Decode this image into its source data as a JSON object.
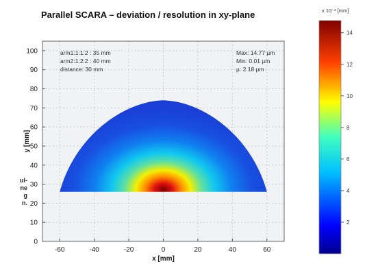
{
  "chart_data": {
    "type": "heatmap",
    "title": "Parallel SCARA – deviation / resolution in xy-plane",
    "xlabel": "x [mm]",
    "ylabel": "y [mm]",
    "xlim": [
      -70,
      70
    ],
    "ylim": [
      0,
      105
    ],
    "x_ticks": [
      -60,
      -40,
      -20,
      0,
      20,
      40,
      60
    ],
    "y_ticks": [
      0,
      10,
      20,
      30,
      40,
      50,
      60,
      70,
      80,
      90,
      100
    ],
    "grid": true,
    "region": {
      "y_base": 26,
      "x_half_width": 60,
      "apex_y": 74,
      "hotspot_x": 0,
      "hotspot_y": 27
    },
    "annotations_left": [
      "arm1:1:1:2 : 35 mm",
      "arm2:1:2:2 : 40 mm",
      "distance: 30 mm"
    ],
    "annotations_right": [
      "Max: 14.77 µm",
      "Min: 0.01 µm",
      "µ: 2.18 µm"
    ],
    "colorbar": {
      "label": "x 10⁻³ [mm]",
      "range": [
        0,
        14.77
      ],
      "ticks": [
        2,
        4,
        6,
        8,
        10,
        12,
        14
      ],
      "colormap": "jet"
    }
  },
  "side_text": [
    "ul-",
    "ne",
    "g",
    "n."
  ]
}
